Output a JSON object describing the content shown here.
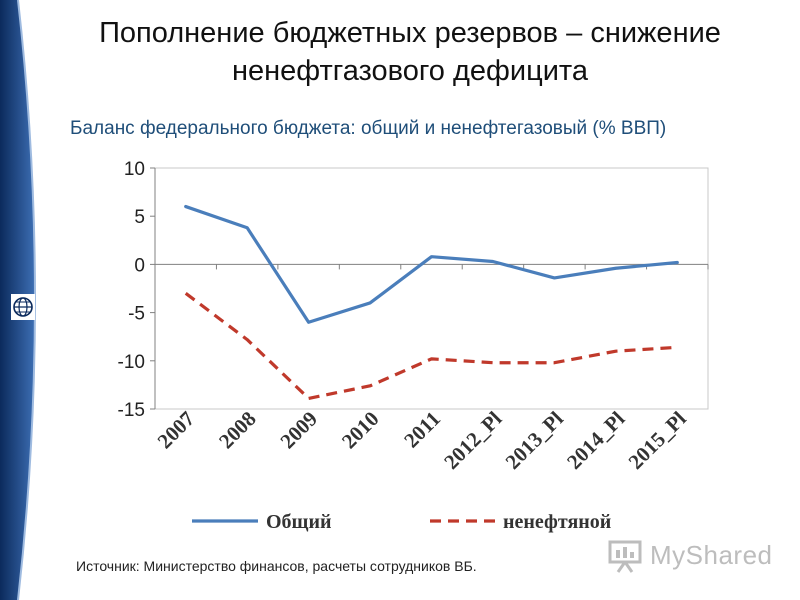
{
  "slide": {
    "title_line1": "Пополнение бюджетных резервов – снижение",
    "title_line2": "ненефтгазового дефицита",
    "source": "Источник: Министерство финансов, расчеты сотрудников ВБ.",
    "watermark": "MyShared"
  },
  "colors": {
    "sidebar_dark": "#0b2a5c",
    "sidebar_light": "#3d6fb4",
    "series_total": "#4a7ebb",
    "series_nonoil": "#c0392b"
  },
  "chart_data": {
    "type": "line",
    "title": "Баланс федерального бюджета: общий и ненефтегазовый (% ВВП)",
    "categories": [
      "2007",
      "2008",
      "2009",
      "2010",
      "2011",
      "2012_Pl",
      "2013_Pl",
      "2014_Pl",
      "2015_Pl"
    ],
    "series": [
      {
        "name": "Общий",
        "style": "solid",
        "values": [
          6.0,
          3.8,
          -6.0,
          -4.0,
          0.8,
          0.3,
          -1.4,
          -0.4,
          0.2
        ]
      },
      {
        "name": "ненефтяной",
        "style": "dashed",
        "values": [
          -3.0,
          -7.8,
          -13.9,
          -12.6,
          -9.8,
          -10.2,
          -10.2,
          -9.0,
          -8.6
        ]
      }
    ],
    "ylim": [
      -15,
      10
    ],
    "yticks": [
      10,
      5,
      0,
      -5,
      -10,
      -15
    ],
    "grid": false,
    "legend": "bottom"
  }
}
